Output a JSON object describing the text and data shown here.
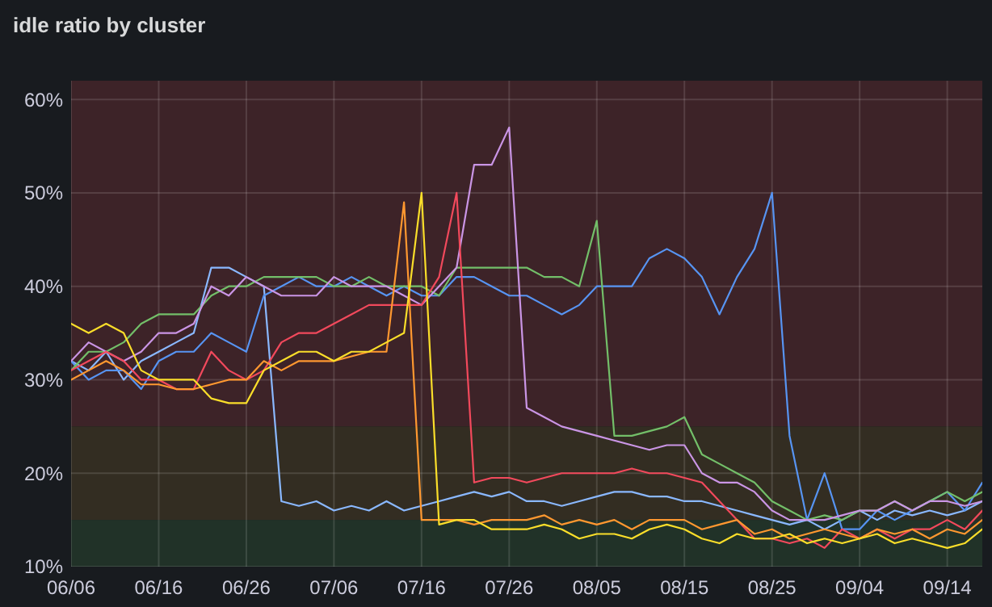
{
  "chart_data": {
    "type": "line",
    "title": "idle ratio by cluster",
    "x": [
      "--06-06",
      "--06-08",
      "--06-10",
      "--06-12",
      "--06-14",
      "--06-16",
      "--06-18",
      "--06-20",
      "--06-22",
      "--06-24",
      "--06-26",
      "--06-28",
      "--06-30",
      "--07-02",
      "--07-04",
      "--07-06",
      "--07-08",
      "--07-10",
      "--07-12",
      "--07-14",
      "--07-16",
      "--07-18",
      "--07-20",
      "--07-22",
      "--07-24",
      "--07-26",
      "--07-28",
      "--07-30",
      "--08-01",
      "--08-03",
      "--08-05",
      "--08-07",
      "--08-09",
      "--08-11",
      "--08-13",
      "--08-15",
      "--08-17",
      "--08-19",
      "--08-21",
      "--08-23",
      "--08-25",
      "--08-27",
      "--08-29",
      "--08-31",
      "--09-02",
      "--09-04",
      "--09-06",
      "--09-08",
      "--09-10",
      "--09-12",
      "--09-14",
      "--09-16",
      "--09-18"
    ],
    "series": [
      {
        "color": "#8ab8ff",
        "values": [
          32,
          31,
          33,
          30,
          32,
          33,
          34,
          35,
          42,
          42,
          41,
          40,
          17,
          16.5,
          17,
          16,
          16.5,
          16,
          17,
          16,
          16.5,
          17,
          17.5,
          18,
          17.5,
          18,
          17,
          17,
          16.5,
          17,
          17.5,
          18,
          18,
          17.5,
          17.5,
          17,
          17,
          16.5,
          16,
          15.5,
          15,
          14.5,
          15,
          14,
          15,
          16,
          15,
          16,
          15.5,
          16,
          15.5,
          16,
          17
        ]
      },
      {
        "color": "#5794f2",
        "values": [
          32,
          30,
          31,
          31,
          29,
          32,
          33,
          33,
          35,
          34,
          33,
          39,
          40,
          41,
          40,
          40,
          41,
          40,
          39,
          40,
          39,
          39,
          41,
          41,
          40,
          39,
          39,
          38,
          37,
          38,
          40,
          40,
          40,
          43,
          44,
          43,
          41,
          37,
          41,
          44,
          50,
          24,
          15,
          20,
          14,
          14,
          16,
          15,
          16,
          17,
          18,
          16,
          19
        ]
      },
      {
        "color": "#73bf69",
        "values": [
          31,
          33,
          33,
          34,
          36,
          37,
          37,
          37,
          39,
          40,
          40,
          41,
          41,
          41,
          41,
          40,
          40,
          41,
          40,
          40,
          40,
          39,
          42,
          42,
          42,
          42,
          42,
          41,
          41,
          40,
          47,
          24,
          24,
          24.5,
          25,
          26,
          22,
          21,
          20,
          19,
          17,
          16,
          15,
          15.5,
          15,
          16,
          16,
          17,
          16,
          17,
          18,
          17,
          18
        ]
      },
      {
        "color": "#ca95e5",
        "values": [
          32,
          34,
          33,
          32,
          33,
          35,
          35,
          36,
          40,
          39,
          41,
          40,
          39,
          39,
          39,
          41,
          40,
          40,
          40,
          39,
          38,
          40,
          42,
          53,
          53,
          57,
          27,
          26,
          25,
          24.5,
          24,
          23.5,
          23,
          22.5,
          23,
          23,
          20,
          19,
          19,
          18,
          16,
          15,
          15,
          15,
          15.5,
          16,
          16,
          17,
          16,
          17,
          17,
          16.5,
          17
        ]
      },
      {
        "color": "#f2495c",
        "values": [
          31,
          32,
          33,
          32,
          30,
          30,
          29,
          29,
          33,
          31,
          30,
          31,
          34,
          35,
          35,
          36,
          37,
          38,
          38,
          38,
          38,
          41,
          50,
          19,
          19.5,
          19.5,
          19,
          19.5,
          20,
          20,
          20,
          20,
          20.5,
          20,
          20,
          19.5,
          19,
          17,
          15,
          13,
          13,
          12.5,
          13,
          12,
          14,
          13,
          14,
          13,
          14,
          14,
          15,
          14,
          16
        ]
      },
      {
        "color": "#ff9830",
        "values": [
          30,
          31,
          32,
          31,
          29.5,
          29.5,
          29,
          29,
          29.5,
          30,
          30,
          32,
          31,
          32,
          32,
          32,
          32.5,
          33,
          33,
          49,
          15,
          15,
          15,
          14.5,
          15,
          15,
          15,
          15.5,
          14.5,
          15,
          14.5,
          15,
          14,
          15,
          15,
          15,
          14,
          14.5,
          15,
          13.5,
          14,
          13,
          13.5,
          14,
          13.5,
          13,
          14,
          13.5,
          14,
          13,
          14,
          13.5,
          15
        ]
      },
      {
        "color": "#fade2a",
        "values": [
          36,
          35,
          36,
          35,
          31,
          30,
          30,
          30,
          28,
          27.5,
          27.5,
          31,
          32,
          33,
          33,
          32,
          33,
          33,
          34,
          35,
          50,
          14.5,
          15,
          15,
          14,
          14,
          14,
          14.5,
          14,
          13,
          13.5,
          13.5,
          13,
          14,
          14.5,
          14,
          13,
          12.5,
          13.5,
          13,
          13,
          13.5,
          12.5,
          13,
          12.5,
          13,
          13.5,
          12.5,
          13,
          12.5,
          12,
          12.5,
          14
        ]
      }
    ],
    "xlim": [
      "--06-06",
      "--09-18"
    ],
    "xticks": [
      {
        "value": "--06-06",
        "label": "06/06"
      },
      {
        "value": "--06-16",
        "label": "06/16"
      },
      {
        "value": "--06-26",
        "label": "06/26"
      },
      {
        "value": "--07-06",
        "label": "07/06"
      },
      {
        "value": "--07-16",
        "label": "07/16"
      },
      {
        "value": "--07-26",
        "label": "07/26"
      },
      {
        "value": "--08-05",
        "label": "08/05"
      },
      {
        "value": "--08-15",
        "label": "08/15"
      },
      {
        "value": "--08-25",
        "label": "08/25"
      },
      {
        "value": "--09-04",
        "label": "09/04"
      },
      {
        "value": "--09-14",
        "label": "09/14"
      }
    ],
    "ylim": [
      10,
      62
    ],
    "yticks": [
      {
        "value": 10,
        "label": "10%"
      },
      {
        "value": 20,
        "label": "20%"
      },
      {
        "value": 30,
        "label": "30%"
      },
      {
        "value": 40,
        "label": "40%"
      },
      {
        "value": 50,
        "label": "50%"
      },
      {
        "value": 60,
        "label": "60%"
      }
    ],
    "bands": [
      {
        "axis": "y",
        "from": 25,
        "to": 62,
        "color": "#3d2328"
      },
      {
        "axis": "y",
        "from": 15,
        "to": 25,
        "color": "#332d22"
      },
      {
        "axis": "y",
        "from": 10,
        "to": 15,
        "color": "#213228"
      }
    ],
    "grid": true,
    "marker": "none",
    "line_style": "solid"
  }
}
